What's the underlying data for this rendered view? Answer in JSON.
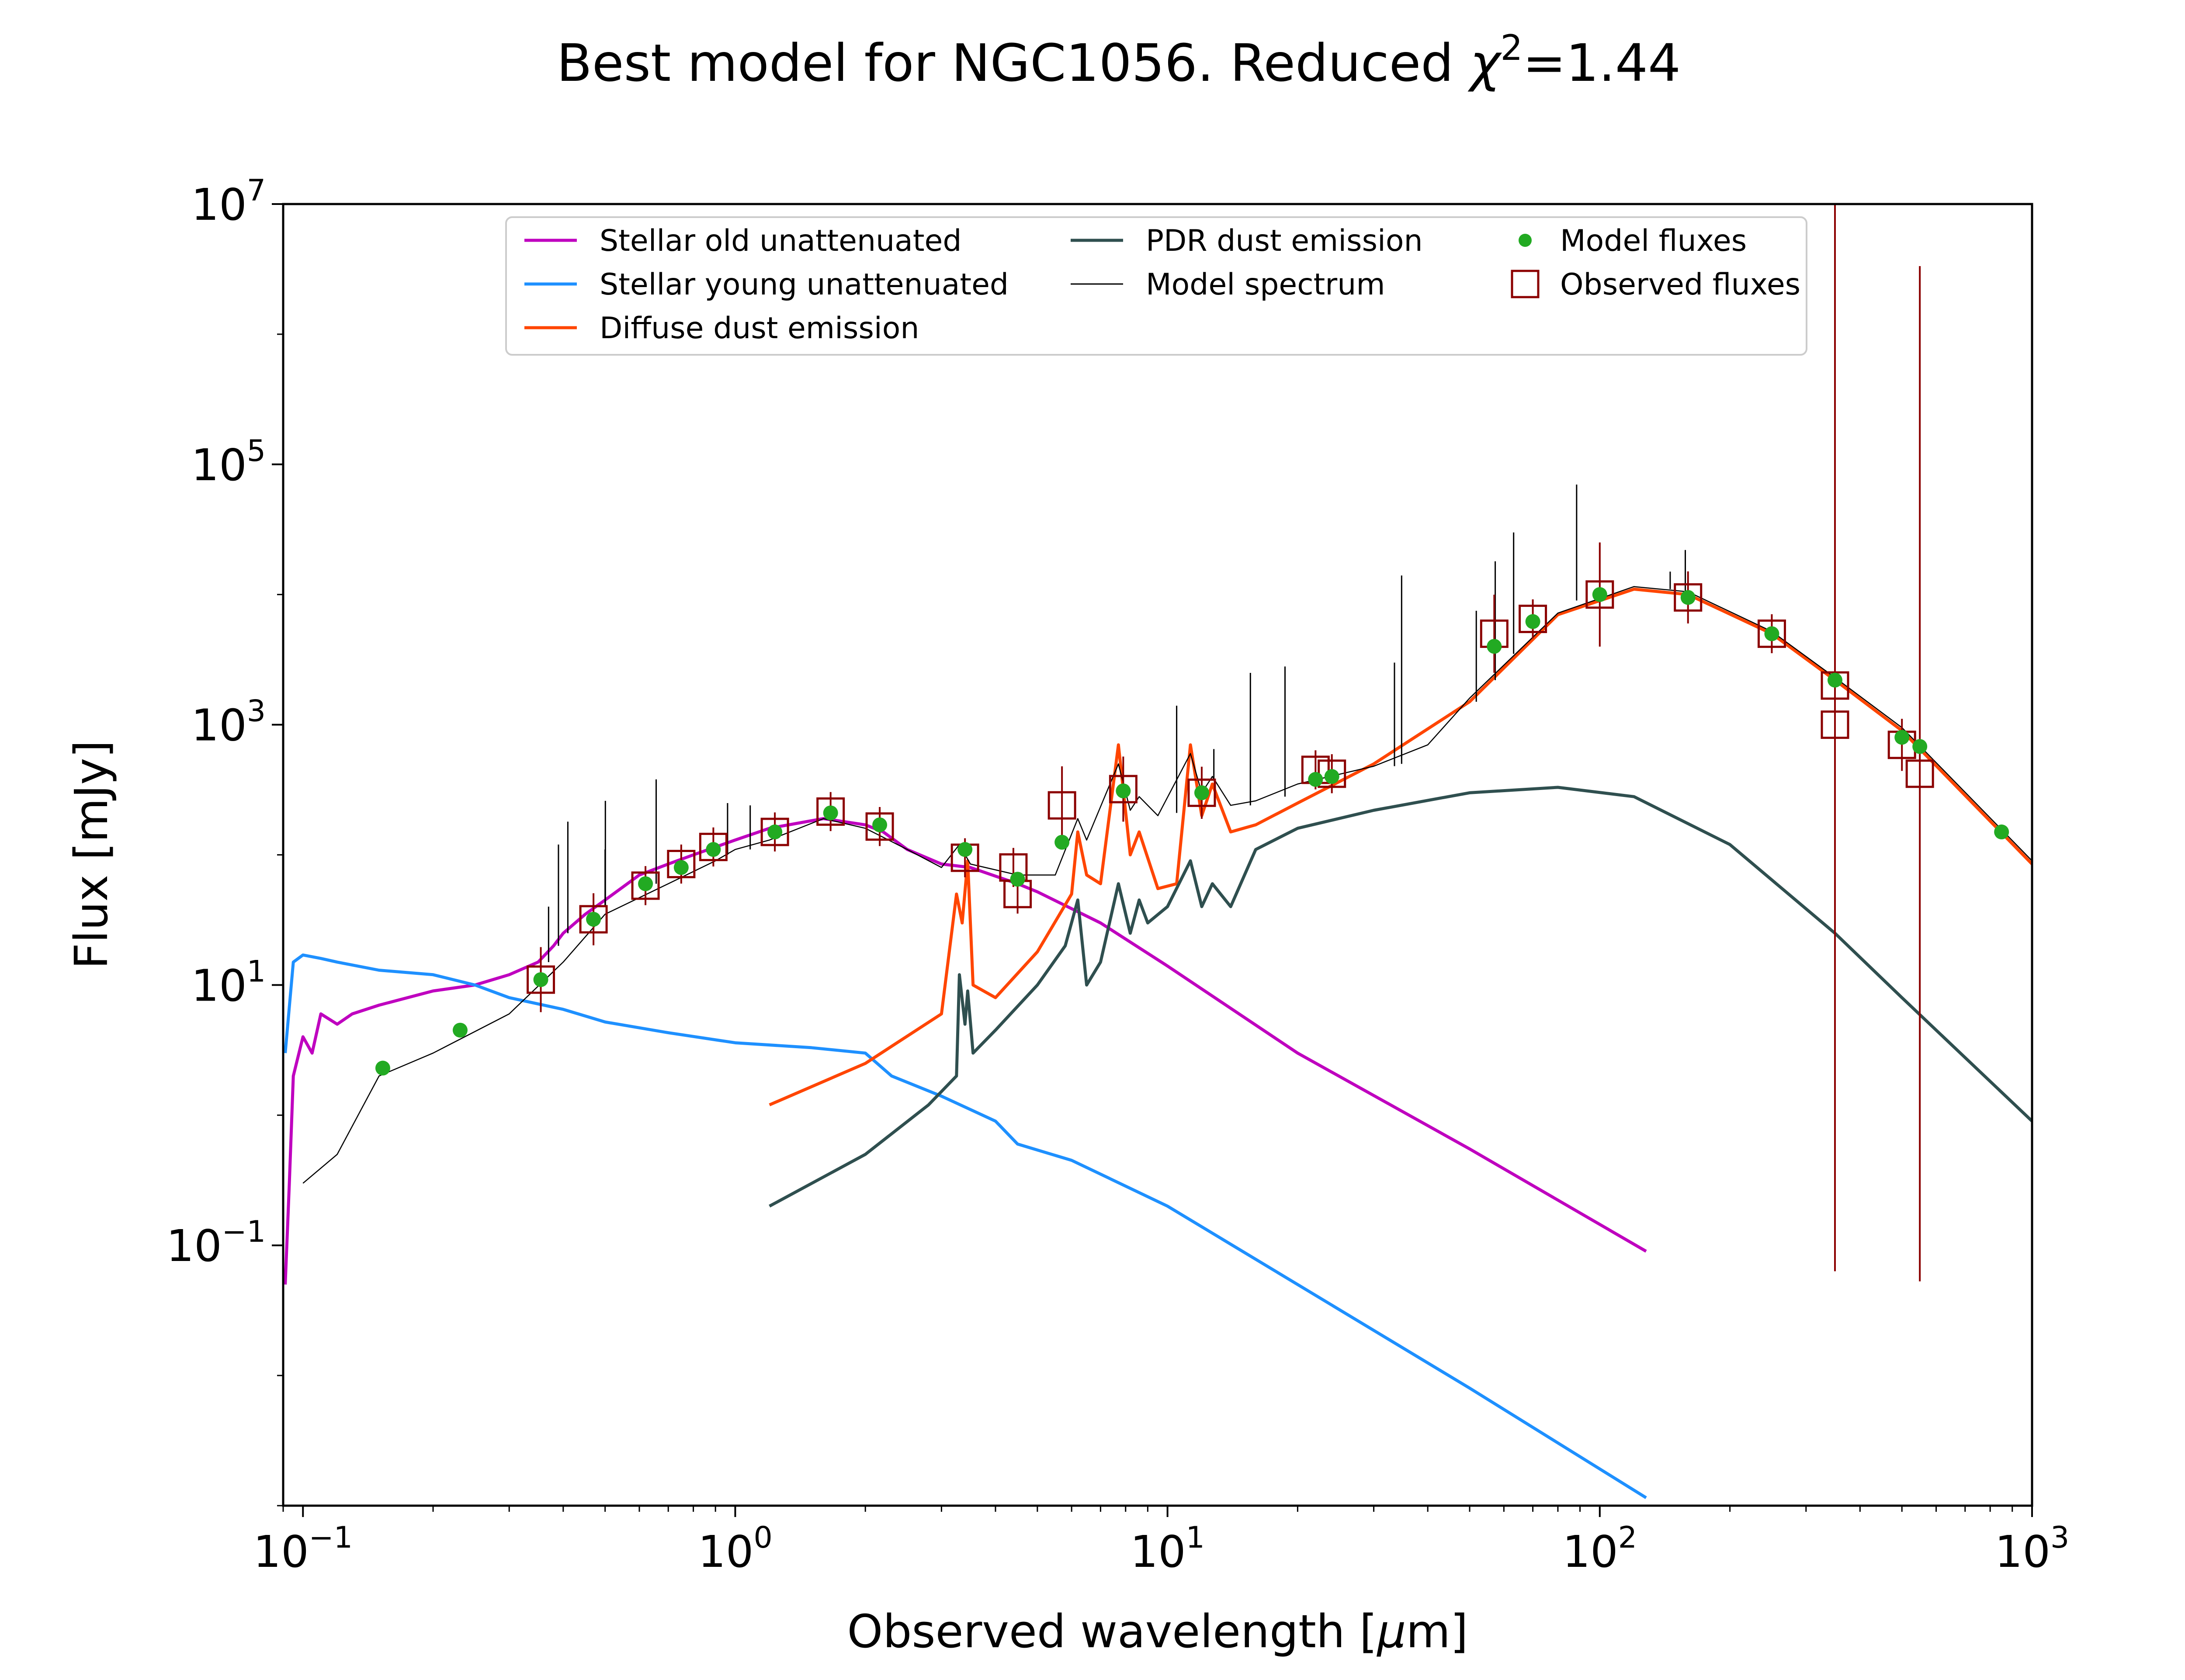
{
  "chart_data": {
    "type": "line",
    "title_main": "Best model for NGC1056. Reduced ",
    "title_chi": "χ",
    "title_sup": "2",
    "title_tail": "=1.44",
    "xlabel_main": "Observed wavelength [",
    "xlabel_mu": "μ",
    "xlabel_tail": "m]",
    "ylabel": "Flux [mJy]",
    "xscale": "log",
    "yscale": "log",
    "xlim": [
      0.09,
      1000
    ],
    "ylim": [
      0.001,
      10000000
    ],
    "grid": false,
    "legend_position": "top-center",
    "x_ticks": [
      {
        "value": 0.1,
        "base": "10",
        "exp": "−1"
      },
      {
        "value": 1,
        "base": "10",
        "exp": "0"
      },
      {
        "value": 10,
        "base": "10",
        "exp": "1"
      },
      {
        "value": 100,
        "base": "10",
        "exp": "2"
      },
      {
        "value": 1000,
        "base": "10",
        "exp": "3"
      }
    ],
    "y_ticks": [
      {
        "value": 0.1,
        "base": "10",
        "exp": "−1"
      },
      {
        "value": 10,
        "base": "10",
        "exp": "1"
      },
      {
        "value": 1000,
        "base": "10",
        "exp": "3"
      },
      {
        "value": 100000,
        "base": "10",
        "exp": "5"
      },
      {
        "value": 10000000,
        "base": "10",
        "exp": "7"
      }
    ],
    "legend": [
      {
        "label": "Stellar old unattenuated",
        "color": "#bf00bf",
        "kind": "line"
      },
      {
        "label": "Stellar young unattenuated",
        "color": "#1e90ff",
        "kind": "line"
      },
      {
        "label": "Diffuse dust emission",
        "color": "#ff4500",
        "kind": "line"
      },
      {
        "label": "PDR dust emission",
        "color": "#2f4f4f",
        "kind": "line"
      },
      {
        "label": "Model spectrum",
        "color": "#000000",
        "kind": "thin-line"
      },
      {
        "label": "Model fluxes",
        "color": "#22aa22",
        "kind": "dot"
      },
      {
        "label": "Observed fluxes",
        "color": "#8b0000",
        "kind": "square"
      }
    ],
    "series": [
      {
        "name": "Stellar old unattenuated",
        "color": "#bf00bf",
        "width": 7,
        "points": [
          [
            0.091,
            0.05
          ],
          [
            0.093,
            0.3
          ],
          [
            0.095,
            2.0
          ],
          [
            0.1,
            4
          ],
          [
            0.105,
            3
          ],
          [
            0.11,
            6
          ],
          [
            0.12,
            5
          ],
          [
            0.13,
            6
          ],
          [
            0.15,
            7
          ],
          [
            0.2,
            9
          ],
          [
            0.25,
            10
          ],
          [
            0.3,
            12
          ],
          [
            0.35,
            15
          ],
          [
            0.38,
            20
          ],
          [
            0.4,
            25
          ],
          [
            0.45,
            35
          ],
          [
            0.5,
            45
          ],
          [
            0.6,
            70
          ],
          [
            0.7,
            85
          ],
          [
            0.8,
            100
          ],
          [
            1.0,
            130
          ],
          [
            1.2,
            160
          ],
          [
            1.6,
            190
          ],
          [
            2.0,
            170
          ],
          [
            2.2,
            150
          ],
          [
            2.5,
            110
          ],
          [
            3.0,
            85
          ],
          [
            3.5,
            80
          ],
          [
            4.5,
            60
          ],
          [
            5.0,
            52
          ],
          [
            7.0,
            30
          ],
          [
            10,
            14
          ],
          [
            20,
            3
          ],
          [
            50,
            0.55
          ],
          [
            128,
            0.09
          ]
        ]
      },
      {
        "name": "Stellar young unattenuated",
        "color": "#1e90ff",
        "width": 7,
        "points": [
          [
            0.091,
            3
          ],
          [
            0.095,
            15
          ],
          [
            0.1,
            17
          ],
          [
            0.11,
            16
          ],
          [
            0.12,
            15
          ],
          [
            0.15,
            13
          ],
          [
            0.2,
            12
          ],
          [
            0.25,
            10
          ],
          [
            0.3,
            8
          ],
          [
            0.4,
            6.5
          ],
          [
            0.5,
            5.2
          ],
          [
            0.7,
            4.3
          ],
          [
            1.0,
            3.6
          ],
          [
            1.5,
            3.3
          ],
          [
            2.0,
            3.0
          ],
          [
            2.3,
            2.0
          ],
          [
            3.0,
            1.4
          ],
          [
            4.0,
            0.9
          ],
          [
            4.5,
            0.6
          ],
          [
            6.0,
            0.45
          ],
          [
            10,
            0.2
          ],
          [
            20,
            0.05
          ],
          [
            50,
            0.008
          ],
          [
            128,
            0.00115
          ]
        ]
      },
      {
        "name": "Diffuse dust emission",
        "color": "#ff4500",
        "width": 7,
        "points": [
          [
            1.2,
            1.2
          ],
          [
            2.0,
            2.5
          ],
          [
            3.0,
            6
          ],
          [
            3.25,
            50
          ],
          [
            3.35,
            30
          ],
          [
            3.45,
            90
          ],
          [
            3.55,
            10
          ],
          [
            4.0,
            8
          ],
          [
            5.0,
            18
          ],
          [
            6.0,
            50
          ],
          [
            6.2,
            150
          ],
          [
            6.5,
            70
          ],
          [
            7.0,
            60
          ],
          [
            7.7,
            700
          ],
          [
            8.2,
            100
          ],
          [
            8.6,
            150
          ],
          [
            9.5,
            55
          ],
          [
            10.5,
            60
          ],
          [
            11.3,
            700
          ],
          [
            12,
            200
          ],
          [
            12.7,
            350
          ],
          [
            14,
            150
          ],
          [
            16,
            170
          ],
          [
            20,
            250
          ],
          [
            30,
            500
          ],
          [
            50,
            1500
          ],
          [
            80,
            7000
          ],
          [
            120,
            11000
          ],
          [
            160,
            10000
          ],
          [
            250,
            5000
          ],
          [
            350,
            2200
          ],
          [
            500,
            900
          ],
          [
            1000,
            85
          ]
        ]
      },
      {
        "name": "PDR dust emission",
        "color": "#2f4f4f",
        "width": 7,
        "points": [
          [
            1.2,
            0.2
          ],
          [
            2.0,
            0.5
          ],
          [
            2.8,
            1.2
          ],
          [
            3.25,
            2.0
          ],
          [
            3.3,
            12
          ],
          [
            3.4,
            5
          ],
          [
            3.45,
            9
          ],
          [
            3.55,
            3.0
          ],
          [
            4.0,
            4.5
          ],
          [
            5.0,
            10
          ],
          [
            5.8,
            20
          ],
          [
            6.2,
            45
          ],
          [
            6.5,
            10
          ],
          [
            7.0,
            15
          ],
          [
            7.7,
            60
          ],
          [
            8.2,
            25
          ],
          [
            8.6,
            45
          ],
          [
            9.0,
            30
          ],
          [
            10,
            40
          ],
          [
            11.3,
            90
          ],
          [
            12,
            40
          ],
          [
            12.7,
            60
          ],
          [
            14,
            40
          ],
          [
            16,
            110
          ],
          [
            20,
            160
          ],
          [
            30,
            220
          ],
          [
            50,
            300
          ],
          [
            80,
            330
          ],
          [
            120,
            280
          ],
          [
            200,
            120
          ],
          [
            350,
            25
          ],
          [
            500,
            8
          ],
          [
            1000,
            0.9
          ]
        ]
      },
      {
        "name": "Model spectrum",
        "color": "#000000",
        "width": 2.5,
        "points": [
          [
            0.1,
            0.3
          ],
          [
            0.12,
            0.5
          ],
          [
            0.15,
            2
          ],
          [
            0.2,
            3
          ],
          [
            0.3,
            6
          ],
          [
            0.4,
            15
          ],
          [
            0.5,
            35
          ],
          [
            0.7,
            60
          ],
          [
            0.9,
            90
          ],
          [
            1.0,
            110
          ],
          [
            1.2,
            130
          ],
          [
            1.6,
            190
          ],
          [
            2.0,
            160
          ],
          [
            2.5,
            110
          ],
          [
            3.0,
            80
          ],
          [
            3.3,
            120
          ],
          [
            3.5,
            85
          ],
          [
            4.5,
            70
          ],
          [
            5.5,
            70
          ],
          [
            6.2,
            190
          ],
          [
            6.5,
            130
          ],
          [
            7.7,
            500
          ],
          [
            8.2,
            220
          ],
          [
            8.6,
            280
          ],
          [
            9.5,
            200
          ],
          [
            11.3,
            600
          ],
          [
            12,
            300
          ],
          [
            12.7,
            400
          ],
          [
            14,
            240
          ],
          [
            16,
            260
          ],
          [
            20,
            350
          ],
          [
            30,
            480
          ],
          [
            40,
            700
          ],
          [
            50,
            1600
          ],
          [
            80,
            7200
          ],
          [
            120,
            11500
          ],
          [
            160,
            10500
          ],
          [
            250,
            5200
          ],
          [
            350,
            2300
          ],
          [
            500,
            950
          ],
          [
            1000,
            90
          ]
        ]
      }
    ],
    "emission_lines": [
      {
        "x": 0.37,
        "y0": 15,
        "y1": 40
      },
      {
        "x": 0.39,
        "y0": 20,
        "y1": 120
      },
      {
        "x": 0.41,
        "y0": 25,
        "y1": 180
      },
      {
        "x": 0.5,
        "y0": 40,
        "y1": 110
      },
      {
        "x": 0.5007,
        "y0": 40,
        "y1": 260
      },
      {
        "x": 0.6563,
        "y0": 60,
        "y1": 380
      },
      {
        "x": 0.96,
        "y0": 100,
        "y1": 250
      },
      {
        "x": 1.083,
        "y0": 110,
        "y1": 240
      },
      {
        "x": 10.5,
        "y0": 210,
        "y1": 1400
      },
      {
        "x": 12.8,
        "y0": 380,
        "y1": 650
      },
      {
        "x": 15.55,
        "y0": 240,
        "y1": 2500
      },
      {
        "x": 18.7,
        "y0": 280,
        "y1": 2800
      },
      {
        "x": 33.5,
        "y0": 480,
        "y1": 3000
      },
      {
        "x": 34.8,
        "y0": 500,
        "y1": 14000
      },
      {
        "x": 51.8,
        "y0": 1500,
        "y1": 7500
      },
      {
        "x": 57.3,
        "y0": 2200,
        "y1": 18000
      },
      {
        "x": 63.2,
        "y0": 3500,
        "y1": 30000
      },
      {
        "x": 88.4,
        "y0": 9000,
        "y1": 70000
      },
      {
        "x": 145.5,
        "y0": 11000,
        "y1": 15000
      },
      {
        "x": 157.7,
        "y0": 10500,
        "y1": 22000
      }
    ],
    "model_fluxes": [
      [
        0.153,
        2.3
      ],
      [
        0.231,
        4.5
      ],
      [
        0.355,
        11
      ],
      [
        0.47,
        32
      ],
      [
        0.62,
        60
      ],
      [
        0.75,
        80
      ],
      [
        0.89,
        110
      ],
      [
        1.235,
        150
      ],
      [
        1.662,
        210
      ],
      [
        2.159,
        170
      ],
      [
        3.4,
        110
      ],
      [
        4.5,
        65
      ],
      [
        5.7,
        125
      ],
      [
        7.9,
        310
      ],
      [
        12,
        300
      ],
      [
        22,
        380
      ],
      [
        24,
        400
      ],
      [
        57,
        4000
      ],
      [
        70,
        6200
      ],
      [
        100,
        10000
      ],
      [
        160,
        9500
      ],
      [
        250,
        5000
      ],
      [
        350,
        2200
      ],
      [
        500,
        800
      ],
      [
        550,
        680
      ],
      [
        850,
        150
      ]
    ],
    "observed_fluxes": [
      {
        "x": 0.355,
        "y": 11,
        "err": 0.25
      },
      {
        "x": 0.47,
        "y": 32,
        "err": 0.2
      },
      {
        "x": 0.62,
        "y": 58,
        "err": 0.15
      },
      {
        "x": 0.75,
        "y": 85,
        "err": 0.15
      },
      {
        "x": 0.89,
        "y": 115,
        "err": 0.15
      },
      {
        "x": 1.235,
        "y": 150,
        "err": 0.15
      },
      {
        "x": 1.662,
        "y": 215,
        "err": 0.15
      },
      {
        "x": 2.159,
        "y": 165,
        "err": 0.15
      },
      {
        "x": 3.4,
        "y": 95,
        "err": 0.15
      },
      {
        "x": 4.4,
        "y": 80,
        "err": 0.15
      },
      {
        "x": 4.5,
        "y": 50,
        "err": 0.15
      },
      {
        "x": 5.7,
        "y": 240,
        "err": 0.3
      },
      {
        "x": 7.9,
        "y": 320,
        "err": 0.25
      },
      {
        "x": 12,
        "y": 300,
        "err": 0.2
      },
      {
        "x": 22,
        "y": 450,
        "err": 0.15
      },
      {
        "x": 24,
        "y": 420,
        "err": 0.15
      },
      {
        "x": 57,
        "y": 5000,
        "err": 0.3
      },
      {
        "x": 70,
        "y": 6500,
        "err": 0.15
      },
      {
        "x": 100,
        "y": 10000,
        "err": 0.4
      },
      {
        "x": 160,
        "y": 9500,
        "err": 0.2
      },
      {
        "x": 250,
        "y": 5000,
        "err": 0.15
      },
      {
        "x": 350,
        "y": 2000,
        "err": 4.5
      },
      {
        "x": 350,
        "y": 1000,
        "err": 0
      },
      {
        "x": 500,
        "y": 700,
        "err": 0.2
      },
      {
        "x": 550,
        "y": 420,
        "err": 3.9
      }
    ]
  }
}
